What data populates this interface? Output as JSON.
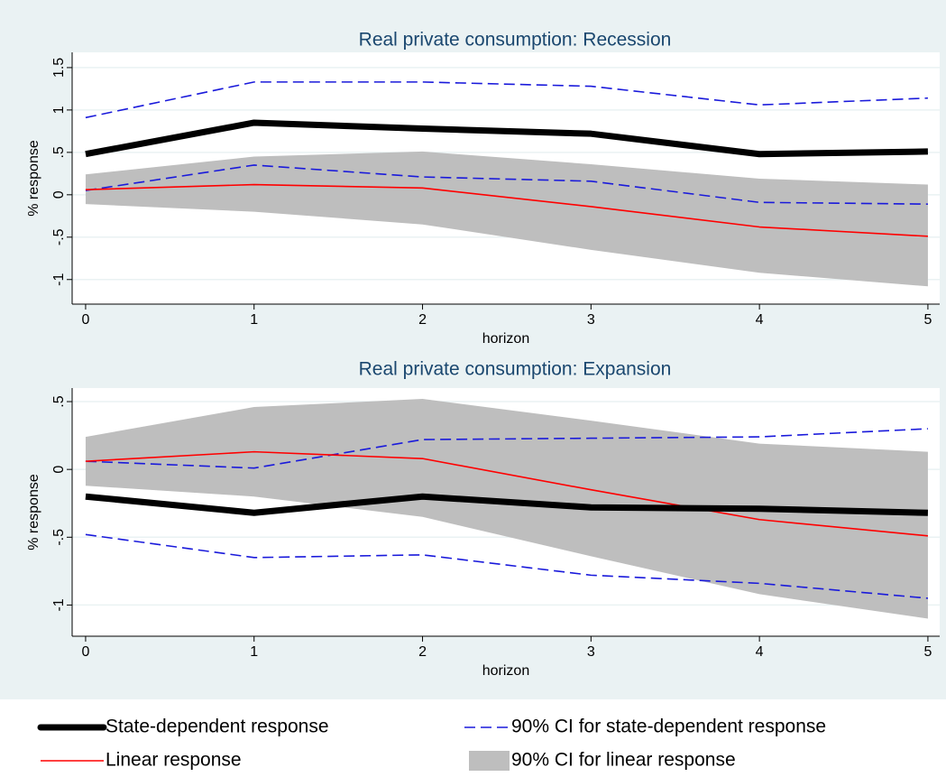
{
  "chart_data": [
    {
      "type": "line",
      "title": "Real private consumption: Recession",
      "xlabel": "horizon",
      "ylabel": "% response",
      "x": [
        0,
        1,
        2,
        3,
        4,
        5
      ],
      "xlim": [
        -0.08,
        5.07
      ],
      "xticks": [
        0,
        1,
        2,
        3,
        4,
        5
      ],
      "ylim": [
        -1.29,
        1.68
      ],
      "yticks": [
        {
          "value": -1,
          "label": "-1"
        },
        {
          "value": -0.5,
          "label": "-.5"
        },
        0,
        {
          "value": 0.5,
          "label": ".5"
        },
        1,
        1.5
      ],
      "grid": true,
      "series": [
        {
          "name": "State-dependent response",
          "kind": "line",
          "color": "#000000",
          "width": 7,
          "values": [
            0.48,
            0.85,
            0.78,
            0.72,
            0.48,
            0.51
          ]
        },
        {
          "name": "90% CI for state-dependent response",
          "kind": "dashed-pair",
          "color": "#1a1adb",
          "width": 1.6,
          "lower": [
            0.05,
            0.35,
            0.21,
            0.16,
            -0.09,
            -0.11
          ],
          "upper": [
            0.91,
            1.33,
            1.33,
            1.28,
            1.06,
            1.14
          ]
        },
        {
          "name": "Linear response",
          "kind": "line",
          "color": "#ff0000",
          "width": 1.6,
          "values": [
            0.06,
            0.12,
            0.08,
            -0.14,
            -0.38,
            -0.49
          ]
        },
        {
          "name": "90% CI for linear response",
          "kind": "band",
          "color": "#bebebe",
          "lower": [
            -0.11,
            -0.2,
            -0.35,
            -0.65,
            -0.92,
            -1.08
          ],
          "upper": [
            0.24,
            0.45,
            0.51,
            0.36,
            0.19,
            0.12
          ]
        }
      ]
    },
    {
      "type": "line",
      "title": "Real private consumption: Expansion",
      "xlabel": "horizon",
      "ylabel": "% response",
      "x": [
        0,
        1,
        2,
        3,
        4,
        5
      ],
      "xlim": [
        -0.08,
        5.07
      ],
      "xticks": [
        0,
        1,
        2,
        3,
        4,
        5
      ],
      "ylim": [
        -1.23,
        0.6
      ],
      "yticks": [
        {
          "value": -1,
          "label": "-1"
        },
        {
          "value": -0.5,
          "label": "-.5"
        },
        0,
        {
          "value": 0.5,
          "label": ".5"
        }
      ],
      "grid": true,
      "series": [
        {
          "kind": "line",
          "color": "#000000",
          "width": 7,
          "values": [
            -0.2,
            -0.32,
            -0.2,
            -0.28,
            -0.29,
            -0.32
          ]
        },
        {
          "kind": "dashed-pair",
          "color": "#1a1adb",
          "width": 1.6,
          "lower": [
            -0.48,
            -0.65,
            -0.63,
            -0.78,
            -0.84,
            -0.95
          ],
          "upper": [
            0.06,
            0.01,
            0.22,
            0.23,
            0.24,
            0.3
          ]
        },
        {
          "kind": "line",
          "color": "#ff0000",
          "width": 1.6,
          "values": [
            0.06,
            0.13,
            0.08,
            -0.15,
            -0.37,
            -0.49
          ]
        },
        {
          "kind": "band",
          "color": "#bebebe",
          "lower": [
            -0.12,
            -0.2,
            -0.35,
            -0.64,
            -0.92,
            -1.1
          ],
          "upper": [
            0.24,
            0.46,
            0.52,
            0.36,
            0.19,
            0.13
          ]
        }
      ]
    }
  ]
}
